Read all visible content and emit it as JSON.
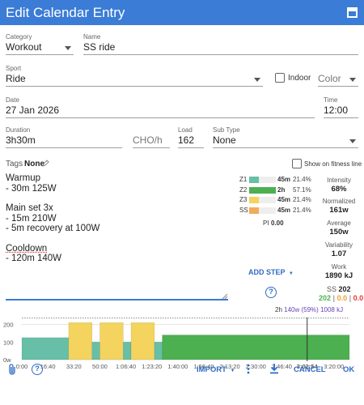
{
  "dialog": {
    "title": "Edit Calendar Entry"
  },
  "fields": {
    "category": {
      "label": "Category",
      "value": "Workout"
    },
    "name": {
      "label": "Name",
      "value": "SS ride"
    },
    "sport": {
      "label": "Sport",
      "value": "Ride"
    },
    "indoor": {
      "label": "Indoor",
      "checked": false
    },
    "color": {
      "placeholder": "Color"
    },
    "date": {
      "label": "Date",
      "value": "27 Jan 2026"
    },
    "time": {
      "label": "Time",
      "value": "12:00"
    },
    "duration": {
      "label": "Duration",
      "value": "3h30m"
    },
    "cho": {
      "placeholder": "CHO/h"
    },
    "load": {
      "label": "Load",
      "value": "162"
    },
    "sub_type": {
      "label": "Sub Type",
      "value": "None"
    },
    "tags": {
      "label": "Tags",
      "value": "None"
    },
    "show_on_fitness_line": {
      "label": "Show on fitness line",
      "checked": false
    }
  },
  "workout_text": {
    "warmup_title": "Warmup",
    "warmup_step": "- 30m 125W",
    "main_title": "Main set 3x",
    "main_step1": "- 15m 210W",
    "main_step2": "- 5m recovery at 100W",
    "cooldown_title": "Cooldown",
    "cooldown_step": "- 120m 140W"
  },
  "zones": [
    {
      "name": "Z1",
      "time": "45m",
      "percent": "21.4%",
      "fraction": 0.214,
      "color": "#66bfa6"
    },
    {
      "name": "Z2",
      "time": "2h",
      "percent": "57.1%",
      "fraction": 0.571,
      "color": "#4caf50"
    },
    {
      "name": "Z3",
      "time": "45m",
      "percent": "21.4%",
      "fraction": 0.214,
      "color": "#f4d35e"
    },
    {
      "name": "SS",
      "time": "45m",
      "percent": "21.4%",
      "fraction": 0.214,
      "color": "#f0ac5a"
    }
  ],
  "pi": {
    "label": "PI",
    "value": "0.00"
  },
  "stats": {
    "intensity": {
      "label": "Intensity",
      "value": "68%"
    },
    "normalized": {
      "label": "Normalized",
      "value": "161w"
    },
    "average": {
      "label": "Average",
      "value": "150w"
    },
    "variability": {
      "label": "Variability",
      "value": "1.07"
    },
    "work": {
      "label": "Work",
      "value": "1890 kJ"
    }
  },
  "ss": {
    "label": "SS",
    "value": "202",
    "parts": [
      "202",
      "0.0",
      "0.0"
    ],
    "part_colors": [
      "#4caf50",
      "#f0a030",
      "#e53935"
    ],
    "separator": "|"
  },
  "add_step": {
    "label": "ADD STEP"
  },
  "chart_caption": {
    "time": "2h",
    "power": "140w (59%)",
    "work": "1008 kJ",
    "power_color": "#6a3fb8",
    "work_color": "#6a3fb8"
  },
  "chart_data": {
    "type": "area",
    "x_unit": "seconds",
    "y_ticks": [
      "200",
      "100",
      "0w"
    ],
    "y_values": [
      200,
      100,
      0
    ],
    "ylim": [
      0,
      230
    ],
    "xlim": [
      0,
      12600
    ],
    "ftp_line": 236,
    "x_tick_labels": [
      "0:00",
      "16:40",
      "33:20",
      "50:00",
      "1:06:40",
      "1:23:20",
      "1:40:00",
      "1:56:40",
      "2:13:20",
      "2:30:00",
      "2:46:40",
      "3:02:54",
      "3:20:00"
    ],
    "x_tick_values": [
      0,
      1000,
      2000,
      3000,
      4000,
      5000,
      6000,
      7000,
      8000,
      9000,
      10000,
      10974,
      12000
    ],
    "highlight_tick": "3:02:54",
    "cursor_x": 10974,
    "segments": [
      {
        "start": 0,
        "end": 1800,
        "watts": 125,
        "zone": "Z1",
        "color": "#66bfa6"
      },
      {
        "start": 1800,
        "end": 2700,
        "watts": 210,
        "zone": "Z3",
        "color": "#f4d35e"
      },
      {
        "start": 2700,
        "end": 3000,
        "watts": 100,
        "zone": "Z1",
        "color": "#66bfa6"
      },
      {
        "start": 3000,
        "end": 3900,
        "watts": 210,
        "zone": "Z3",
        "color": "#f4d35e"
      },
      {
        "start": 3900,
        "end": 4200,
        "watts": 100,
        "zone": "Z1",
        "color": "#66bfa6"
      },
      {
        "start": 4200,
        "end": 5100,
        "watts": 210,
        "zone": "Z3",
        "color": "#f4d35e"
      },
      {
        "start": 5100,
        "end": 5400,
        "watts": 100,
        "zone": "Z1",
        "color": "#66bfa6"
      },
      {
        "start": 5400,
        "end": 12600,
        "watts": 140,
        "zone": "Z2",
        "color": "#4caf50"
      }
    ]
  },
  "bottom_bar": {
    "import_label": "IMPORT",
    "cancel_label": "CANCEL",
    "ok_label": "OK"
  },
  "colors": {
    "accent": "#3b7cd6",
    "link": "#2f6cc4"
  }
}
